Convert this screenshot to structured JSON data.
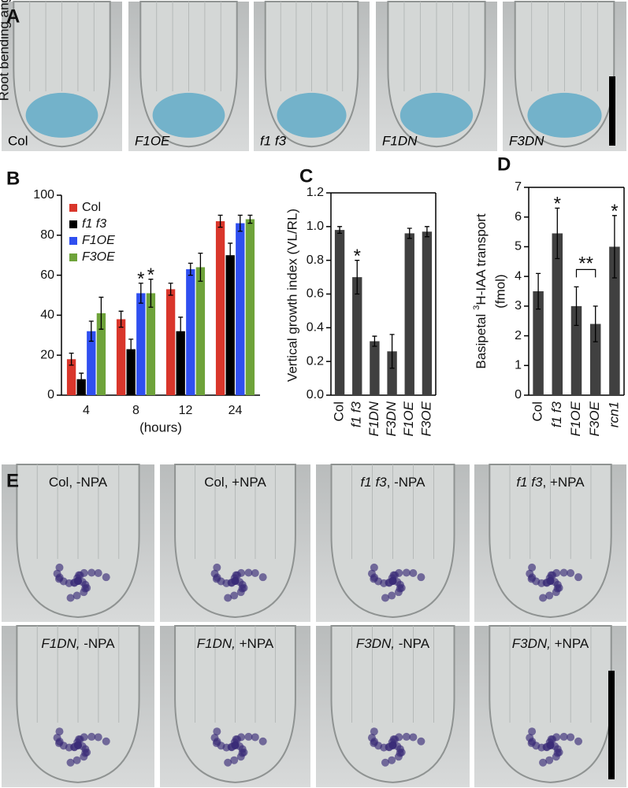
{
  "panel_a": {
    "letter": "A",
    "images": [
      {
        "label": "Col",
        "italic": false
      },
      {
        "label": "F1OE",
        "italic": true
      },
      {
        "label": "f1 f3",
        "italic": true
      },
      {
        "label": "F1DN",
        "italic": true
      },
      {
        "label": "F3DN",
        "italic": true
      }
    ]
  },
  "chart_data": [
    {
      "type": "bar",
      "panel": "B",
      "ylabel": "Root bending angle (degree)",
      "xlabel": "(hours)",
      "categories": [
        "4",
        "8",
        "12",
        "24"
      ],
      "ylim": [
        0,
        100
      ],
      "yticks": [
        0,
        20,
        40,
        60,
        80,
        100
      ],
      "frame": false,
      "legend": "top-left",
      "series": [
        {
          "name": "Col",
          "color": "#d9362b",
          "values": [
            18,
            38,
            53,
            87
          ],
          "errors": [
            3,
            4,
            3,
            3
          ]
        },
        {
          "name": "f1 f3",
          "color": "#000000",
          "values": [
            8,
            23,
            32,
            70
          ],
          "errors": [
            3,
            5,
            7,
            6
          ]
        },
        {
          "name": "F1OE",
          "color": "#2f4ff0",
          "values": [
            32,
            51,
            63,
            86
          ],
          "errors": [
            5,
            5,
            3,
            4
          ]
        },
        {
          "name": "F3OE",
          "color": "#6ea33a",
          "values": [
            41,
            51,
            64,
            88
          ],
          "errors": [
            8,
            7,
            7,
            2
          ]
        }
      ],
      "annotations": [
        {
          "text": "*",
          "x": "8",
          "series": "F1OE"
        },
        {
          "text": "*",
          "x": "8",
          "series": "F3OE"
        }
      ]
    },
    {
      "type": "bar",
      "panel": "C",
      "ylabel": "Vertical growth index (VL/RL)",
      "categories": [
        "Col",
        "f1 f3",
        "F1DN",
        "F3DN",
        "F1OE",
        "F3OE"
      ],
      "color": "#404040",
      "values": [
        0.98,
        0.7,
        0.32,
        0.26,
        0.96,
        0.97
      ],
      "errors": [
        0.02,
        0.1,
        0.03,
        0.1,
        0.03,
        0.03
      ],
      "ylim": [
        0,
        1.2
      ],
      "yticks": [
        {
          "value": 0,
          "label": "0.0"
        },
        0.2,
        0.4,
        0.6,
        0.8,
        {
          "value": 1,
          "label": "1.0"
        },
        1.2
      ],
      "frame": true,
      "annotations": [
        {
          "text": "*",
          "x": "f1 f3"
        }
      ]
    },
    {
      "type": "bar",
      "panel": "D",
      "ylabel": {
        "prefix": "Basipetal",
        "superscript": "3",
        "suffix": "H-IAA transport"
      },
      "ylabel_unit": "(fmol)",
      "categories": [
        "Col",
        "f1 f3",
        "F1OE",
        "F3OE",
        "rcn1"
      ],
      "color": "#404040",
      "values": [
        3.5,
        5.45,
        3.0,
        2.4,
        5.0
      ],
      "errors": [
        0.6,
        0.85,
        0.65,
        0.6,
        1.05
      ],
      "ylim": [
        0,
        7
      ],
      "yticks": [
        0,
        1,
        2,
        3,
        4,
        5,
        6,
        7
      ],
      "frame": true,
      "annotations": [
        {
          "text": "*",
          "x": "f1 f3"
        },
        {
          "text": "*",
          "x": "rcn1"
        },
        {
          "text": "**",
          "between": [
            "F1OE",
            "F3OE"
          ]
        }
      ]
    }
  ],
  "panel_e": {
    "letter": "E",
    "images": [
      {
        "genotype": "Col",
        "treatment": ", -NPA",
        "italic": false
      },
      {
        "genotype": "Col",
        "treatment": ", +NPA",
        "italic": false
      },
      {
        "genotype": "f1 f3",
        "treatment": ", -NPA",
        "italic": true
      },
      {
        "genotype": "f1 f3",
        "treatment": ", +NPA",
        "italic": true
      },
      {
        "genotype": "F1DN,",
        "treatment": " -NPA",
        "italic": true
      },
      {
        "genotype": "F1DN,",
        "treatment": " +NPA",
        "italic": true
      },
      {
        "genotype": "F3DN,",
        "treatment": " -NPA",
        "italic": true
      },
      {
        "genotype": "F3DN,",
        "treatment": " +NPA",
        "italic": true
      }
    ]
  }
}
